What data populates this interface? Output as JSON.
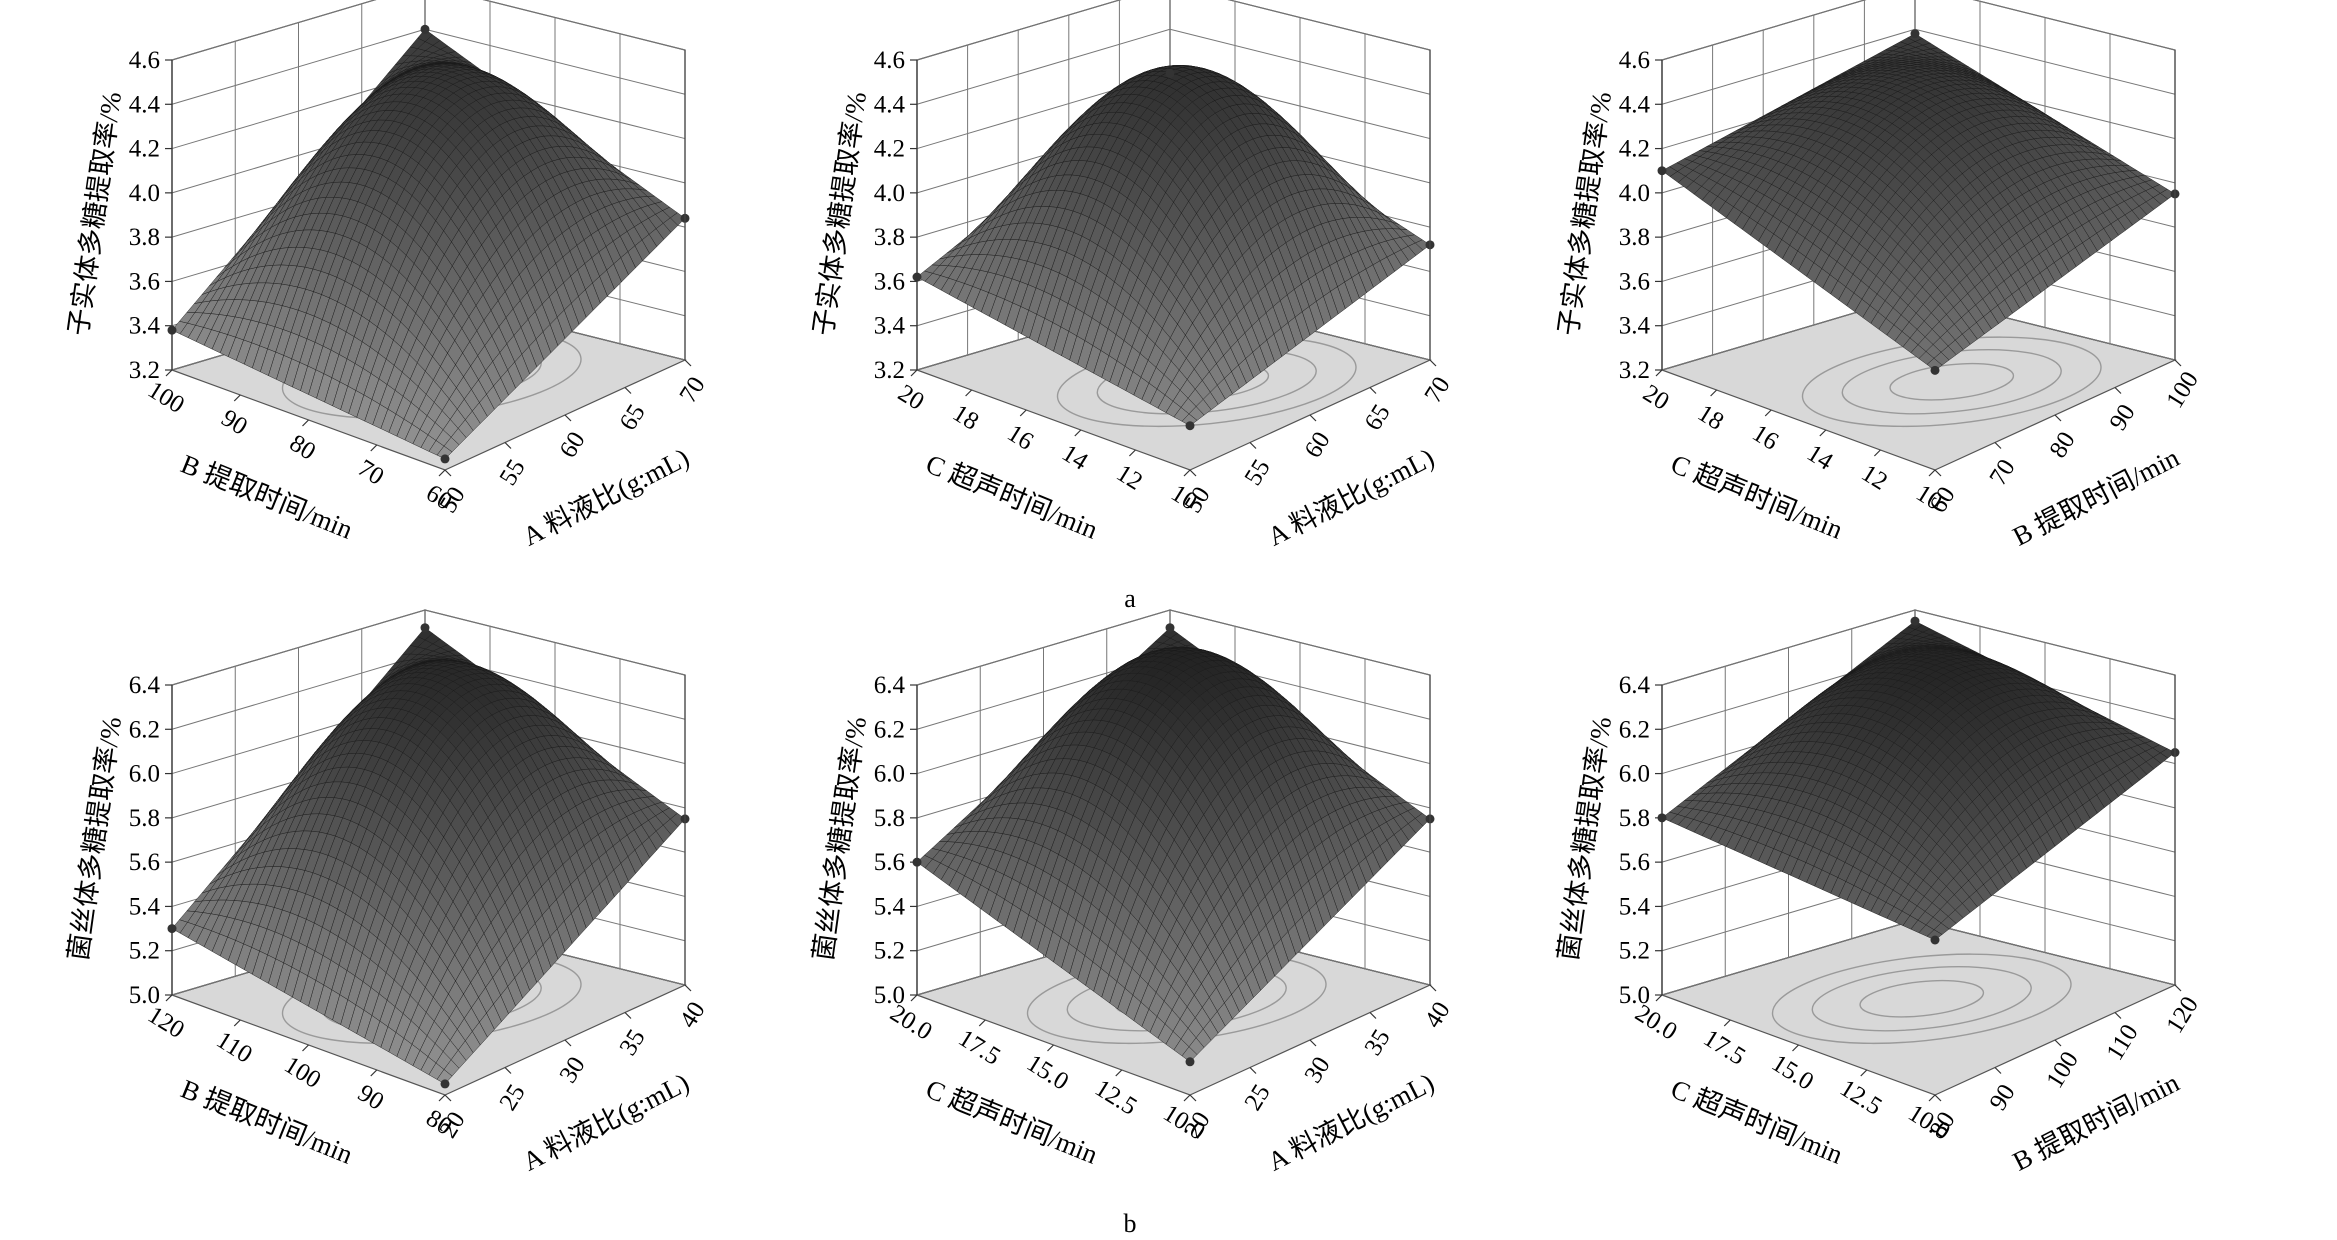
{
  "figure": {
    "panel_labels": [
      "a",
      "b"
    ]
  },
  "chart_data": [
    {
      "type": "surface",
      "panel": "a",
      "zlabel": "子实体多糖提取率/%",
      "xlabel": "B 提取时间/min",
      "ylabel": "A 料液比(g:mL)",
      "x_ticks": [
        "100",
        "90",
        "80",
        "70",
        "60"
      ],
      "y_ticks": [
        "50",
        "55",
        "60",
        "65",
        "70"
      ],
      "z_ticks": [
        "3.2",
        "3.4",
        "3.6",
        "3.8",
        "4.0",
        "4.2",
        "4.4",
        "4.6"
      ],
      "zlim": [
        3.2,
        4.6
      ],
      "corners": {
        "left": 3.38,
        "back": 4.4,
        "right": 3.84,
        "front": 3.25
      },
      "peak": 4.38,
      "contour": "centered"
    },
    {
      "type": "surface",
      "panel": "a",
      "zlabel": "子实体多糖提取率/%",
      "xlabel": "C 超声时间/min",
      "ylabel": "A 料液比(g:mL)",
      "x_ticks": [
        "20",
        "18",
        "16",
        "14",
        "12",
        "10"
      ],
      "y_ticks": [
        "50",
        "55",
        "60",
        "65",
        "70"
      ],
      "z_ticks": [
        "3.2",
        "3.4",
        "3.6",
        "3.8",
        "4.0",
        "4.2",
        "4.4",
        "4.6"
      ],
      "zlim": [
        3.2,
        4.6
      ],
      "corners": {
        "left": 3.62,
        "back": 4.2,
        "right": 3.72,
        "front": 3.4
      },
      "peak": 4.48,
      "contour": "offset"
    },
    {
      "type": "surface",
      "panel": "a",
      "zlabel": "子实体多糖提取率/%",
      "xlabel": "C 超声时间/min",
      "ylabel": "B 提取时间/min",
      "x_ticks": [
        "20",
        "18",
        "16",
        "14",
        "12",
        "10"
      ],
      "y_ticks": [
        "60",
        "70",
        "80",
        "90",
        "100"
      ],
      "z_ticks": [
        "3.2",
        "3.4",
        "3.6",
        "3.8",
        "4.0",
        "4.2",
        "4.4",
        "4.6"
      ],
      "zlim": [
        3.2,
        4.6
      ],
      "corners": {
        "left": 4.1,
        "back": 4.38,
        "right": 3.95,
        "front": 3.65
      },
      "peak": 4.38,
      "contour": "offset"
    },
    {
      "type": "surface",
      "panel": "b",
      "zlabel": "菌丝体多糖提取率/%",
      "xlabel": "B 提取时间/min",
      "ylabel": "A 料液比(g:mL)",
      "x_ticks": [
        "120",
        "110",
        "100",
        "90",
        "80"
      ],
      "y_ticks": [
        "20",
        "25",
        "30",
        "35",
        "40"
      ],
      "z_ticks": [
        "5.0",
        "5.2",
        "5.4",
        "5.6",
        "5.8",
        "6.0",
        "6.2",
        "6.4"
      ],
      "zlim": [
        5.0,
        6.4
      ],
      "corners": {
        "left": 5.3,
        "back": 6.32,
        "right": 5.75,
        "front": 5.05
      },
      "peak": 6.3,
      "contour": "centered"
    },
    {
      "type": "surface",
      "panel": "b",
      "zlabel": "菌丝体多糖提取率/%",
      "xlabel": "C 超声时间/min",
      "ylabel": "A 料液比(g:mL)",
      "x_ticks": [
        "20.0",
        "17.5",
        "15.0",
        "12.5",
        "10.0"
      ],
      "y_ticks": [
        "20",
        "25",
        "30",
        "35",
        "40"
      ],
      "z_ticks": [
        "5.0",
        "5.2",
        "5.4",
        "5.6",
        "5.8",
        "6.0",
        "6.2",
        "6.4"
      ],
      "zlim": [
        5.0,
        6.4
      ],
      "corners": {
        "left": 5.6,
        "back": 6.32,
        "right": 5.75,
        "front": 5.15
      },
      "peak": 6.4,
      "contour": "centered"
    },
    {
      "type": "surface",
      "panel": "b",
      "zlabel": "菌丝体多糖提取率/%",
      "xlabel": "C 超声时间/min",
      "ylabel": "B 提取时间/min",
      "x_ticks": [
        "20.0",
        "17.5",
        "15.0",
        "12.5",
        "10.0"
      ],
      "y_ticks": [
        "80",
        "90",
        "100",
        "110",
        "120"
      ],
      "z_ticks": [
        "5.0",
        "5.2",
        "5.4",
        "5.6",
        "5.8",
        "6.0",
        "6.2",
        "6.4"
      ],
      "zlim": [
        5.0,
        6.4
      ],
      "corners": {
        "left": 5.8,
        "back": 6.35,
        "right": 6.05,
        "front": 5.7
      },
      "peak": 6.4,
      "contour": "centered"
    }
  ]
}
